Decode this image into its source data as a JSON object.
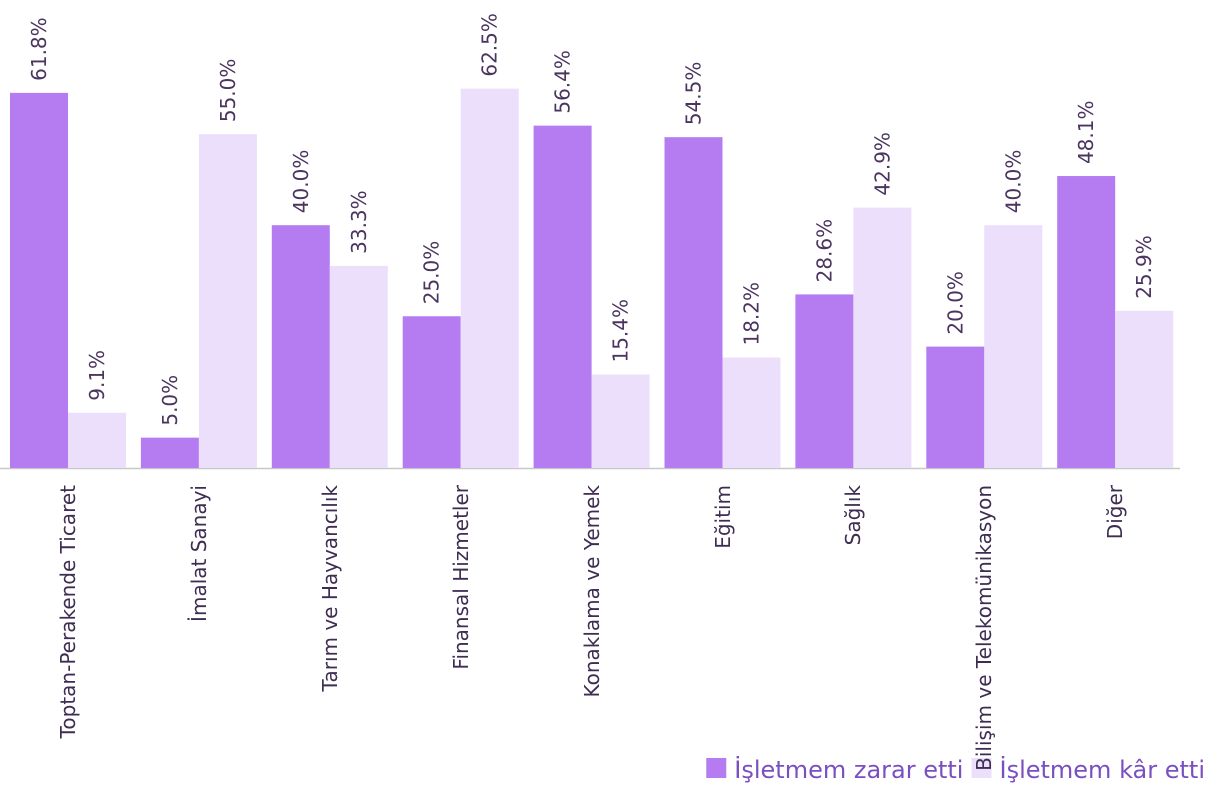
{
  "chart_data": {
    "type": "bar",
    "categories": [
      "Toptan-Perakende Ticaret",
      "İmalat Sanayi",
      "Tarım ve Hayvancılık",
      "Finansal Hizmetler",
      "Konaklama ve Yemek",
      "Eğitim",
      "Sağlık",
      "Bilişim ve Telekomünikasyon",
      "Diğer"
    ],
    "series": [
      {
        "name": "İşletmem zarar etti",
        "color": "#b47cf0",
        "values": [
          61.8,
          5.0,
          40.0,
          25.0,
          56.4,
          54.5,
          28.6,
          20.0,
          48.1
        ],
        "value_labels": [
          "61.8%",
          "5.0%",
          "40.0%",
          "25.0%",
          "56.4%",
          "54.5%",
          "28.6%",
          "20.0%",
          "48.1%"
        ]
      },
      {
        "name": "İşletmem kâr etti",
        "color": "#ecdffb",
        "values": [
          9.1,
          55.0,
          33.3,
          62.5,
          15.4,
          18.2,
          42.9,
          40.0,
          25.9
        ],
        "value_labels": [
          "9.1%",
          "55.0%",
          "33.3%",
          "62.5%",
          "15.4%",
          "18.2%",
          "42.9%",
          "40.0%",
          "25.9%"
        ]
      }
    ],
    "legend": "bottom-right"
  }
}
